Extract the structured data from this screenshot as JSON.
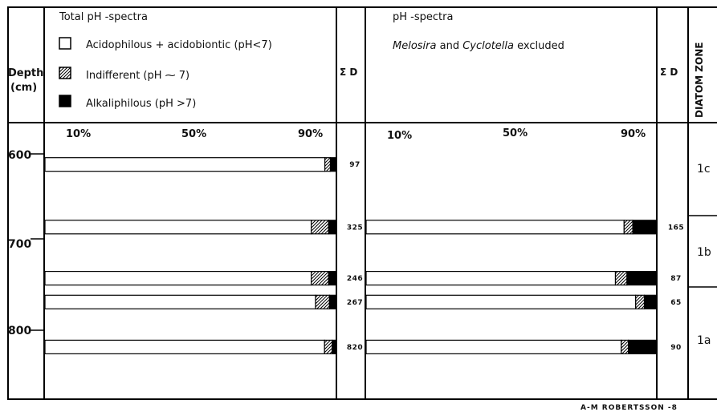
{
  "header": {
    "left_title": "Total pH -spectra",
    "right_title": "pH -spectra",
    "right_subtitle": {
      "it1": "Melosira",
      "and": " and ",
      "it2": "Cyclotella",
      "rest": " excluded"
    },
    "depth_label_1": "Depth",
    "depth_label_2": "(cm)",
    "md_label": "Σ D",
    "zone_label": "DIATOM ZONE"
  },
  "legend": [
    {
      "label": "Acidophilous + acidobiontic (pH<7)",
      "fill": "white"
    },
    {
      "label": "Indifferent (pH ⁓ 7)",
      "fill": "hatch"
    },
    {
      "label": "Alkaliphilous (pH >7)",
      "fill": "black"
    }
  ],
  "percent_ticks": [
    "10%",
    "50%",
    "90%"
  ],
  "zones": [
    "1c",
    "1b",
    "1a"
  ],
  "credit": "A-M ROBERTSSON -8",
  "chart_data": {
    "type": "bar",
    "orientation": "horizontal stacked",
    "ylabel": "Depth (cm)",
    "y_ticks": [
      600,
      700,
      800
    ],
    "categories": [
      "Acidophilous + acidobiontic",
      "Indifferent",
      "Alkaliphilous"
    ],
    "colors": {
      "acid": "#ffffff",
      "indiff": "hatch",
      "alkali": "#000000"
    },
    "panels": [
      {
        "title": "Total pH -spectra",
        "samples": [
          {
            "depth": 612,
            "acid": 96.3,
            "indiff": 1.9,
            "alkali": 1.8,
            "n": "97"
          },
          {
            "depth": 683,
            "acid": 91.6,
            "indiff": 6.0,
            "alkali": 2.4,
            "n": "325"
          },
          {
            "depth": 741,
            "acid": 91.6,
            "indiff": 6.0,
            "alkali": 2.4,
            "n": "246"
          },
          {
            "depth": 768,
            "acid": 93.1,
            "indiff": 4.8,
            "alkali": 2.1,
            "n": "267"
          },
          {
            "depth": 819,
            "acid": 96.2,
            "indiff": 2.6,
            "alkali": 1.2,
            "n": "820"
          }
        ]
      },
      {
        "title": "pH -spectra",
        "subtitle": "Melosira and Cyclotella excluded",
        "samples": [
          {
            "depth": 683,
            "acid": 89.0,
            "indiff": 3.0,
            "alkali": 8.0,
            "n": "165"
          },
          {
            "depth": 741,
            "acid": 86.0,
            "indiff": 4.0,
            "alkali": 10.0,
            "n": "87"
          },
          {
            "depth": 768,
            "acid": 93.0,
            "indiff": 3.0,
            "alkali": 4.0,
            "n": "65"
          },
          {
            "depth": 819,
            "acid": 88.0,
            "indiff": 2.5,
            "alkali": 9.5,
            "n": "90"
          }
        ]
      }
    ]
  }
}
